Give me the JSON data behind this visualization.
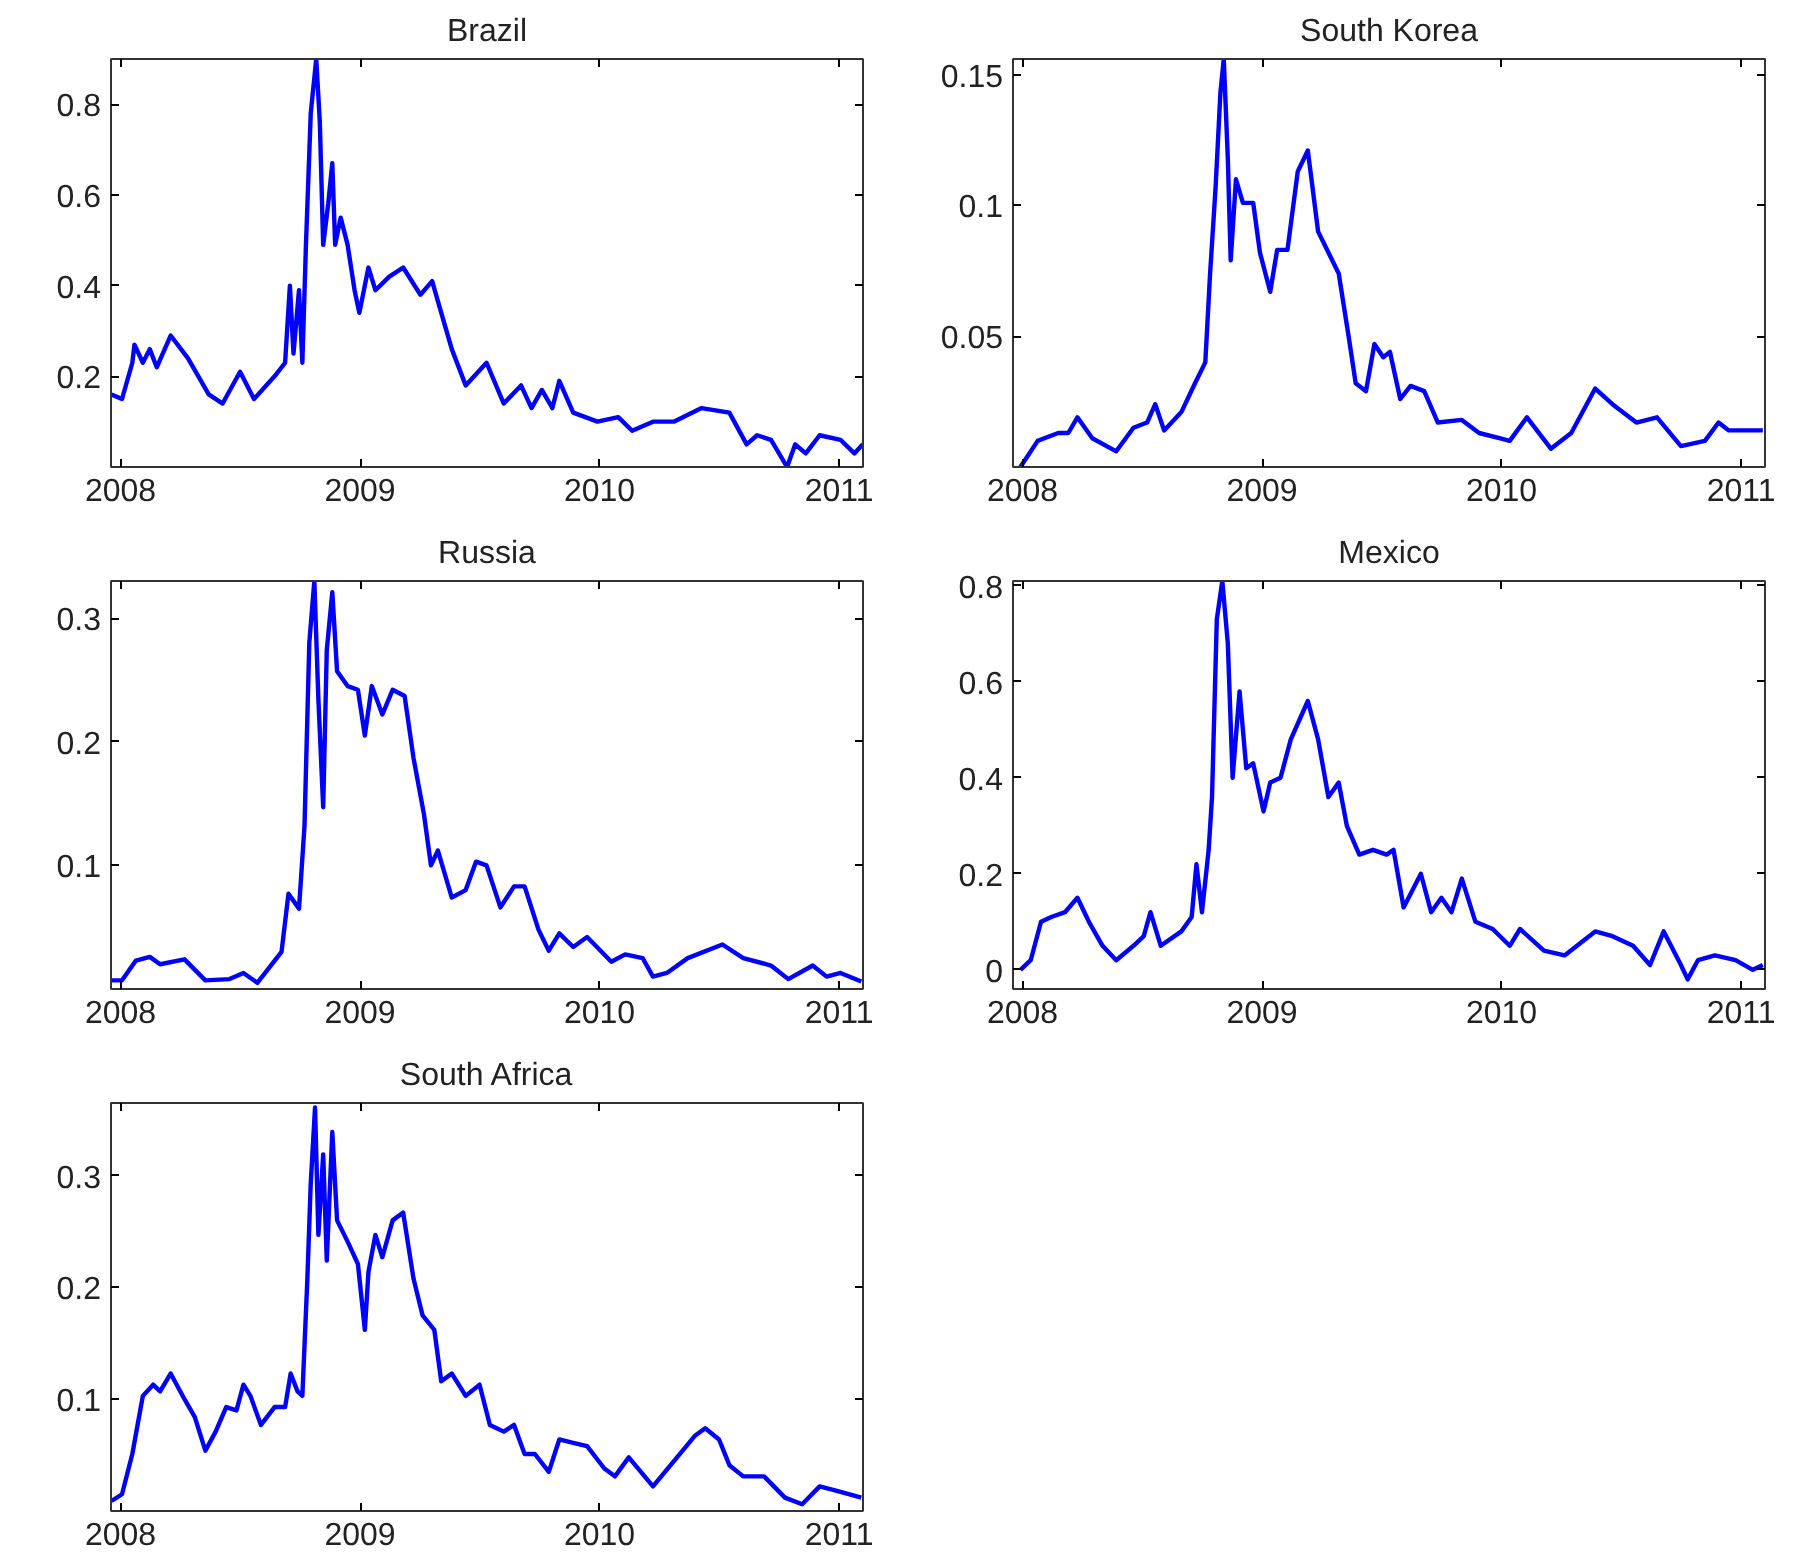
{
  "chart_data": [
    {
      "type": "line",
      "title": "Brazil",
      "xlim": [
        2007.96,
        2011.1
      ],
      "xticks": [
        2008,
        2009,
        2010,
        2011
      ],
      "ylim": [
        0,
        0.9
      ],
      "yticks": [
        0.2,
        0.4,
        0.6,
        0.8
      ],
      "series": [
        {
          "color": "#0000ff",
          "x": [
            2007.962,
            2008.006,
            2008.049,
            2008.058,
            2008.093,
            2008.122,
            2008.151,
            2008.209,
            2008.281,
            2008.368,
            2008.426,
            2008.499,
            2008.557,
            2008.643,
            2008.687,
            2008.707,
            2008.722,
            2008.745,
            2008.759,
            2008.774,
            2008.794,
            2008.817,
            2008.832,
            2008.846,
            2008.867,
            2008.884,
            2008.896,
            2008.919,
            2008.948,
            2008.977,
            2008.997,
            2009.035,
            2009.064,
            2009.122,
            2009.18,
            2009.252,
            2009.301,
            2009.339,
            2009.383,
            2009.441,
            2009.528,
            2009.6,
            2009.672,
            2009.716,
            2009.759,
            2009.803,
            2009.832,
            2009.89,
            2009.991,
            2010.078,
            2010.136,
            2010.223,
            2010.31,
            2010.426,
            2010.542,
            2010.614,
            2010.658,
            2010.716,
            2010.783,
            2010.817,
            2010.861,
            2010.919,
            2011.006,
            2011.064,
            2011.099
          ],
          "values": [
            0.16,
            0.15,
            0.23,
            0.27,
            0.23,
            0.26,
            0.22,
            0.29,
            0.24,
            0.16,
            0.14,
            0.21,
            0.15,
            0.2,
            0.23,
            0.4,
            0.25,
            0.39,
            0.23,
            0.49,
            0.78,
            0.9,
            0.76,
            0.49,
            0.58,
            0.67,
            0.49,
            0.55,
            0.49,
            0.39,
            0.34,
            0.44,
            0.39,
            0.42,
            0.44,
            0.38,
            0.41,
            0.34,
            0.26,
            0.18,
            0.23,
            0.14,
            0.18,
            0.13,
            0.17,
            0.13,
            0.19,
            0.12,
            0.1,
            0.11,
            0.08,
            0.1,
            0.1,
            0.13,
            0.12,
            0.05,
            0.07,
            0.06,
            0.0,
            0.05,
            0.03,
            0.07,
            0.06,
            0.03,
            0.05
          ]
        }
      ]
    },
    {
      "type": "line",
      "title": "South Korea",
      "xlim": [
        2007.96,
        2011.1
      ],
      "xticks": [
        2008,
        2009,
        2010,
        2011
      ],
      "ylim": [
        0,
        0.156
      ],
      "yticks": [
        0.05,
        0.1,
        0.15
      ],
      "series": [
        {
          "color": "#0000ff",
          "x": [
            2007.991,
            2008.063,
            2008.091,
            2008.149,
            2008.191,
            2008.229,
            2008.291,
            2008.391,
            2008.463,
            2008.52,
            2008.554,
            2008.591,
            2008.663,
            2008.72,
            2008.763,
            2008.783,
            2008.806,
            2008.826,
            2008.84,
            2008.857,
            2008.869,
            2008.891,
            2008.92,
            2008.963,
            2008.991,
            2009.034,
            2009.063,
            2009.106,
            2009.149,
            2009.191,
            2009.234,
            2009.277,
            2009.32,
            2009.363,
            2009.391,
            2009.434,
            2009.469,
            2009.506,
            2009.534,
            2009.577,
            2009.62,
            2009.677,
            2009.734,
            2009.834,
            2009.906,
            2009.991,
            2010.034,
            2010.106,
            2010.206,
            2010.291,
            2010.391,
            2010.463,
            2010.563,
            2010.649,
            2010.749,
            2010.849,
            2010.906,
            2010.949,
            2011.091
          ],
          "values": [
            0,
            0.01,
            0.011,
            0.013,
            0.013,
            0.019,
            0.011,
            0.006,
            0.015,
            0.017,
            0.024,
            0.014,
            0.021,
            0.032,
            0.04,
            0.074,
            0.107,
            0.143,
            0.156,
            0.118,
            0.079,
            0.11,
            0.101,
            0.101,
            0.082,
            0.067,
            0.083,
            0.083,
            0.113,
            0.121,
            0.09,
            0.082,
            0.074,
            0.049,
            0.032,
            0.029,
            0.047,
            0.042,
            0.044,
            0.026,
            0.031,
            0.029,
            0.017,
            0.018,
            0.013,
            0.011,
            0.01,
            0.019,
            0.007,
            0.013,
            0.03,
            0.024,
            0.017,
            0.019,
            0.008,
            0.01,
            0.017,
            0.014,
            0.014
          ]
        }
      ]
    },
    {
      "type": "line",
      "title": "Russia",
      "xlim": [
        2007.96,
        2011.1
      ],
      "xticks": [
        2008,
        2009,
        2010,
        2011
      ],
      "ylim": [
        0,
        0.33
      ],
      "yticks": [
        0.1,
        0.2,
        0.3
      ],
      "series": [
        {
          "color": "#0000ff",
          "x": [
            2007.962,
            2008.006,
            2008.064,
            2008.122,
            2008.165,
            2008.267,
            2008.354,
            2008.455,
            2008.513,
            2008.571,
            2008.672,
            2008.701,
            2008.745,
            2008.768,
            2008.788,
            2008.809,
            2008.826,
            2008.846,
            2008.861,
            2008.884,
            2008.904,
            2008.948,
            2008.991,
            2009.02,
            2009.049,
            2009.093,
            2009.136,
            2009.186,
            2009.223,
            2009.267,
            2009.296,
            2009.325,
            2009.383,
            2009.441,
            2009.484,
            2009.528,
            2009.586,
            2009.643,
            2009.687,
            2009.745,
            2009.788,
            2009.832,
            2009.89,
            2009.948,
            2010.049,
            2010.107,
            2010.18,
            2010.223,
            2010.281,
            2010.368,
            2010.513,
            2010.6,
            2010.716,
            2010.788,
            2010.89,
            2010.948,
            2011.006,
            2011.093
          ],
          "values": [
            0.007,
            0.007,
            0.023,
            0.026,
            0.02,
            0.024,
            0.007,
            0.008,
            0.013,
            0.005,
            0.03,
            0.077,
            0.065,
            0.132,
            0.28,
            0.33,
            0.234,
            0.147,
            0.274,
            0.321,
            0.257,
            0.245,
            0.242,
            0.205,
            0.245,
            0.222,
            0.242,
            0.237,
            0.187,
            0.141,
            0.1,
            0.112,
            0.074,
            0.08,
            0.103,
            0.1,
            0.066,
            0.083,
            0.083,
            0.048,
            0.031,
            0.045,
            0.034,
            0.042,
            0.022,
            0.028,
            0.025,
            0.01,
            0.013,
            0.025,
            0.036,
            0.025,
            0.019,
            0.008,
            0.019,
            0.01,
            0.013,
            0.006
          ]
        }
      ]
    },
    {
      "type": "line",
      "title": "Mexico",
      "xlim": [
        2007.96,
        2011.1
      ],
      "xticks": [
        2008,
        2009,
        2010,
        2011
      ],
      "ylim": [
        -0.04,
        0.81
      ],
      "yticks": [
        0,
        0.2,
        0.4,
        0.6,
        0.8
      ],
      "series": [
        {
          "color": "#0000ff",
          "x": [
            2007.991,
            2008.034,
            2008.077,
            2008.12,
            2008.177,
            2008.229,
            2008.277,
            2008.334,
            2008.391,
            2008.463,
            2008.506,
            2008.534,
            2008.577,
            2008.663,
            2008.706,
            2008.726,
            2008.749,
            2008.777,
            2008.791,
            2008.811,
            2008.834,
            2008.857,
            2008.877,
            2008.906,
            2008.934,
            2008.963,
            2009.006,
            2009.034,
            2009.077,
            2009.12,
            2009.191,
            2009.234,
            2009.277,
            2009.32,
            2009.354,
            2009.406,
            2009.463,
            2009.52,
            2009.549,
            2009.591,
            2009.663,
            2009.706,
            2009.749,
            2009.791,
            2009.834,
            2009.891,
            2009.963,
            2010.034,
            2010.077,
            2010.177,
            2010.263,
            2010.391,
            2010.463,
            2010.549,
            2010.62,
            2010.677,
            2010.749,
            2010.777,
            2010.82,
            2010.891,
            2010.977,
            2011.049,
            2011.091
          ],
          "values": [
            0,
            0.02,
            0.1,
            0.11,
            0.12,
            0.15,
            0.1,
            0.05,
            0.02,
            0.05,
            0.07,
            0.12,
            0.05,
            0.08,
            0.11,
            0.22,
            0.12,
            0.25,
            0.36,
            0.73,
            0.81,
            0.68,
            0.4,
            0.58,
            0.42,
            0.43,
            0.33,
            0.39,
            0.4,
            0.48,
            0.56,
            0.48,
            0.36,
            0.39,
            0.3,
            0.24,
            0.25,
            0.24,
            0.25,
            0.13,
            0.2,
            0.12,
            0.15,
            0.12,
            0.19,
            0.1,
            0.085,
            0.05,
            0.085,
            0.04,
            0.03,
            0.08,
            0.07,
            0.05,
            0.01,
            0.08,
            0.01,
            -0.02,
            0.02,
            0.03,
            0.02,
            0,
            0.01
          ]
        }
      ]
    },
    {
      "type": "line",
      "title": "South Africa",
      "xlim": [
        2007.96,
        2011.1
      ],
      "xticks": [
        2008,
        2009,
        2010,
        2011
      ],
      "ylim": [
        0,
        0.365
      ],
      "yticks": [
        0.1,
        0.2,
        0.3
      ],
      "series": [
        {
          "color": "#0000ff",
          "x": [
            2007.962,
            2008.006,
            2008.049,
            2008.093,
            2008.136,
            2008.165,
            2008.209,
            2008.267,
            2008.31,
            2008.354,
            2008.397,
            2008.441,
            2008.484,
            2008.513,
            2008.542,
            2008.586,
            2008.643,
            2008.687,
            2008.71,
            2008.739,
            2008.759,
            2008.78,
            2008.794,
            2008.812,
            2008.826,
            2008.846,
            2008.861,
            2008.884,
            2008.904,
            2008.948,
            2008.991,
            2009.02,
            2009.035,
            2009.064,
            2009.093,
            2009.136,
            2009.18,
            2009.223,
            2009.261,
            2009.31,
            2009.339,
            2009.383,
            2009.441,
            2009.499,
            2009.542,
            2009.6,
            2009.643,
            2009.687,
            2009.73,
            2009.788,
            2009.832,
            2009.89,
            2009.948,
            2010.02,
            2010.064,
            2010.122,
            2010.223,
            2010.397,
            2010.441,
            2010.499,
            2010.542,
            2010.6,
            2010.687,
            2010.774,
            2010.846,
            2010.919,
            2010.991,
            2011.093
          ],
          "values": [
            0.009,
            0.015,
            0.051,
            0.103,
            0.113,
            0.107,
            0.123,
            0.1,
            0.084,
            0.054,
            0.071,
            0.093,
            0.09,
            0.113,
            0.103,
            0.077,
            0.093,
            0.093,
            0.123,
            0.107,
            0.103,
            0.208,
            0.293,
            0.361,
            0.247,
            0.319,
            0.224,
            0.339,
            0.26,
            0.241,
            0.221,
            0.162,
            0.214,
            0.247,
            0.227,
            0.26,
            0.267,
            0.208,
            0.175,
            0.162,
            0.116,
            0.123,
            0.103,
            0.113,
            0.077,
            0.071,
            0.077,
            0.051,
            0.051,
            0.035,
            0.064,
            0.061,
            0.058,
            0.038,
            0.031,
            0.048,
            0.022,
            0.067,
            0.074,
            0.064,
            0.041,
            0.031,
            0.031,
            0.012,
            0.006,
            0.022,
            0.018,
            0.012
          ]
        }
      ]
    }
  ]
}
